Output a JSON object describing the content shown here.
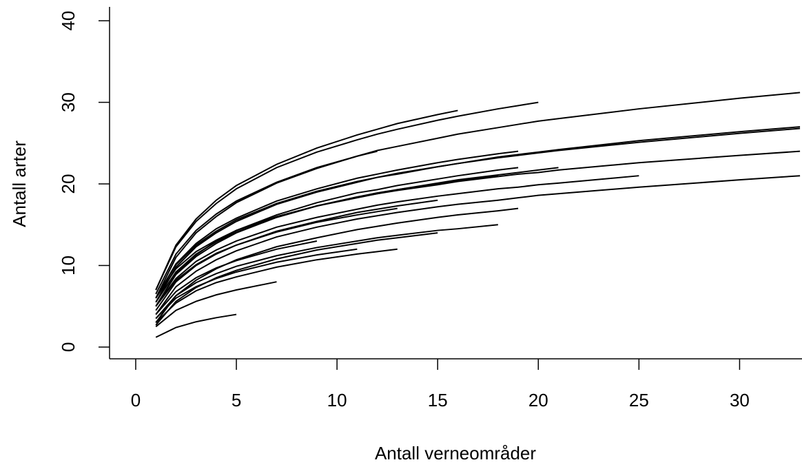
{
  "chart_data": {
    "type": "line",
    "xlabel": "Antall verneområder",
    "ylabel": "Antall arter",
    "x": [
      1,
      2,
      3,
      4,
      5,
      7,
      9,
      11,
      12,
      13,
      15,
      16,
      18,
      19,
      20,
      21,
      25,
      30,
      33
    ],
    "color": "#000000",
    "xlim": [
      -1.3,
      33.1
    ],
    "xticks": [
      0,
      5,
      10,
      15,
      20,
      25,
      30
    ],
    "ylim": [
      -1.44,
      41.7
    ],
    "yticks": [
      0,
      10,
      20,
      30,
      40
    ],
    "grid": false,
    "series": [
      {
        "values": [
          1.2,
          2.4,
          3.1,
          3.6,
          4.0,
          null,
          null,
          null,
          null,
          null,
          null,
          null,
          null,
          null,
          null,
          null,
          null,
          null,
          null
        ]
      },
      {
        "values": [
          2.5,
          4.5,
          5.6,
          6.4,
          7.0,
          8.0,
          null,
          null,
          null,
          null,
          null,
          null,
          null,
          null,
          null,
          null,
          null,
          null,
          null
        ]
      },
      {
        "values": [
          3,
          5.4,
          6.9,
          7.9,
          8.6,
          9.8,
          10.7,
          11.4,
          11.7,
          12,
          null,
          null,
          null,
          null,
          null,
          null,
          null,
          null,
          null
        ]
      },
      {
        "values": [
          2.7,
          5.6,
          7.3,
          8.5,
          9.4,
          10.8,
          11.9,
          12.7,
          13.1,
          13.4,
          14,
          null,
          null,
          null,
          null,
          null,
          null,
          null,
          null
        ]
      },
      {
        "values": [
          3.5,
          6.3,
          7.9,
          9.0,
          9.9,
          11.2,
          12.2,
          13.0,
          13.4,
          13.7,
          14.3,
          14.5,
          15,
          null,
          null,
          null,
          null,
          null,
          null
        ]
      },
      {
        "values": [
          3,
          6.3,
          8.2,
          9.6,
          10.7,
          12.3,
          13.4,
          14.4,
          14.8,
          15.2,
          15.9,
          16.2,
          16.7,
          17,
          null,
          null,
          null,
          null,
          null
        ]
      },
      {
        "values": [
          3.5,
          6.0,
          7.4,
          8.4,
          9.2,
          10.4,
          11.3,
          12,
          null,
          null,
          null,
          null,
          null,
          null,
          null,
          null,
          null,
          null,
          null
        ]
      },
      {
        "values": [
          4,
          6.8,
          8.5,
          9.7,
          10.6,
          12.0,
          13,
          null,
          null,
          null,
          null,
          null,
          null,
          null,
          null,
          null,
          null,
          null,
          null
        ]
      },
      {
        "values": [
          4.5,
          8.0,
          10.0,
          11.4,
          12.5,
          14.2,
          15.4,
          16.5,
          16.9,
          17.3,
          18,
          null,
          null,
          null,
          null,
          null,
          null,
          null,
          null
        ]
      },
      {
        "values": [
          5,
          8.2,
          10.1,
          11.5,
          12.5,
          14.1,
          15.3,
          16.2,
          16.6,
          17,
          null,
          null,
          null,
          null,
          null,
          null,
          null,
          null,
          null
        ]
      },
      {
        "values": [
          4,
          7.4,
          9.3,
          10.7,
          11.8,
          13.5,
          14.7,
          15.7,
          16.1,
          16.5,
          17.2,
          17.5,
          18.0,
          18.3,
          18.6,
          18.8,
          19.6,
          20.5,
          21
        ]
      },
      {
        "values": [
          5,
          8.4,
          10.5,
          11.9,
          13.0,
          14.7,
          15.9,
          16.9,
          17.4,
          17.8,
          18.5,
          18.8,
          19.4,
          19.6,
          19.9,
          20.1,
          21,
          null,
          null
        ]
      },
      {
        "values": [
          6,
          9.6,
          11.7,
          13.1,
          14.3,
          16.0,
          17.3,
          18.3,
          18.8,
          19.2,
          19.9,
          20.3,
          20.9,
          21.2,
          21.4,
          21.7,
          22.6,
          23.5,
          24
        ]
      },
      {
        "values": [
          5.5,
          9.8,
          12.3,
          14.0,
          15.4,
          17.5,
          19.0,
          20.2,
          20.8,
          21.3,
          22.1,
          22.5,
          23.3,
          23.6,
          23.9,
          24.2,
          25.3,
          26.4,
          27
        ]
      },
      {
        "values": [
          6,
          10.1,
          12.5,
          14.2,
          15.6,
          17.6,
          19.1,
          20.3,
          20.8,
          21.2,
          22.1,
          22.5,
          23.2,
          23.5,
          23.8,
          24.1,
          25.1,
          26.2,
          26.8
        ]
      },
      {
        "values": [
          6.5,
          11.4,
          14.3,
          16.3,
          17.9,
          20.2,
          22.0,
          23.4,
          24.1,
          24.6,
          25.6,
          26.1,
          26.9,
          27.3,
          27.7,
          28.0,
          29.2,
          30.5,
          31.2
        ]
      },
      {
        "values": [
          7,
          12.3,
          15.4,
          17.6,
          19.4,
          22.0,
          23.9,
          25.4,
          26.1,
          26.7,
          27.8,
          28.3,
          29.2,
          29.6,
          30,
          null,
          null,
          null,
          null
        ]
      },
      {
        "values": [
          7,
          12.5,
          15.7,
          18.0,
          19.8,
          22.4,
          24.4,
          26.0,
          26.7,
          27.4,
          28.5,
          29,
          null,
          null,
          null,
          null,
          null,
          null,
          null
        ]
      },
      {
        "values": [
          6,
          11.0,
          14.0,
          16.0,
          17.7,
          20.1,
          21.9,
          23.4,
          24,
          null,
          null,
          null,
          null,
          null,
          null,
          null,
          null,
          null,
          null
        ]
      },
      {
        "values": [
          6,
          10.2,
          12.7,
          14.5,
          15.8,
          17.9,
          19.4,
          20.7,
          21.2,
          21.7,
          22.6,
          23.0,
          23.7,
          24,
          null,
          null,
          null,
          null,
          null
        ]
      },
      {
        "values": [
          5,
          8.9,
          11.1,
          12.7,
          14.0,
          15.9,
          17.3,
          18.4,
          18.9,
          19.3,
          20.1,
          20.5,
          21.1,
          21.4,
          21.7,
          22,
          null,
          null,
          null
        ]
      },
      {
        "values": [
          5.5,
          9.2,
          11.4,
          12.9,
          14.1,
          15.9,
          17.3,
          18.4,
          18.8,
          19.3,
          20.0,
          20.4,
          21,
          null,
          null,
          null,
          null,
          null,
          null
        ]
      },
      {
        "values": [
          5,
          9.0,
          11.3,
          13.0,
          14.3,
          16.2,
          17.7,
          18.9,
          19.3,
          19.8,
          20.6,
          21.0,
          21.7,
          22,
          null,
          null,
          null,
          null,
          null
        ]
      }
    ]
  }
}
